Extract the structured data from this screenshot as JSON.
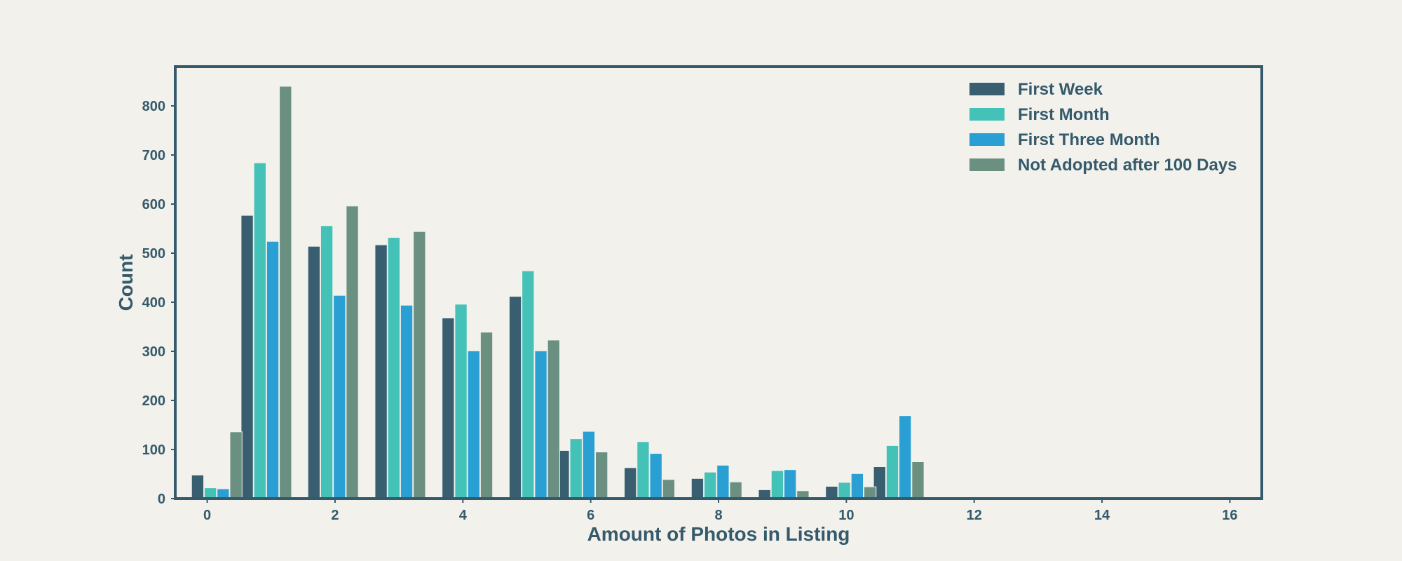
{
  "chart_data": {
    "type": "bar",
    "xlabel": "Amount of Photos in Listing",
    "ylabel": "Count",
    "xlim": [
      -0.5,
      16.5
    ],
    "ylim": [
      0,
      880
    ],
    "xticks": [
      0,
      2,
      4,
      6,
      8,
      10,
      12,
      14,
      16
    ],
    "yticks": [
      0,
      100,
      200,
      300,
      400,
      500,
      600,
      700,
      800
    ],
    "legend_position": "top-right",
    "grid": false,
    "bar_width": 0.19,
    "series": [
      {
        "name": "First Week",
        "color": "#395e70",
        "bars": [
          [
            -0.15,
            48
          ],
          [
            0.625,
            577
          ],
          [
            1.67,
            514
          ],
          [
            2.72,
            517
          ],
          [
            3.77,
            368
          ],
          [
            4.82,
            412
          ],
          [
            5.57,
            98
          ],
          [
            6.62,
            63
          ],
          [
            7.67,
            41
          ],
          [
            8.72,
            18
          ],
          [
            9.77,
            25
          ],
          [
            10.52,
            65
          ]
        ]
      },
      {
        "name": "First Month",
        "color": "#45c2b8",
        "bars": [
          [
            0.05,
            22
          ],
          [
            0.825,
            684
          ],
          [
            1.87,
            556
          ],
          [
            2.92,
            532
          ],
          [
            3.97,
            396
          ],
          [
            5.02,
            464
          ],
          [
            5.77,
            122
          ],
          [
            6.82,
            116
          ],
          [
            7.87,
            54
          ],
          [
            8.92,
            57
          ],
          [
            9.97,
            33
          ],
          [
            10.72,
            108
          ]
        ]
      },
      {
        "name": "First Three Month",
        "color": "#2a9fd4",
        "bars": [
          [
            0.25,
            20
          ],
          [
            1.025,
            524
          ],
          [
            2.07,
            414
          ],
          [
            3.12,
            394
          ],
          [
            4.17,
            301
          ],
          [
            5.22,
            301
          ],
          [
            5.97,
            137
          ],
          [
            7.02,
            92
          ],
          [
            8.07,
            68
          ],
          [
            9.12,
            59
          ],
          [
            10.17,
            51
          ],
          [
            10.92,
            169
          ]
        ]
      },
      {
        "name": "Not Adopted after 100 Days",
        "color": "#6b9082",
        "bars": [
          [
            0.45,
            136
          ],
          [
            1.225,
            840
          ],
          [
            2.27,
            596
          ],
          [
            3.32,
            544
          ],
          [
            4.37,
            339
          ],
          [
            5.42,
            323
          ],
          [
            6.17,
            95
          ],
          [
            7.22,
            39
          ],
          [
            8.27,
            34
          ],
          [
            9.32,
            16
          ],
          [
            10.37,
            24
          ],
          [
            11.12,
            75
          ]
        ]
      }
    ]
  }
}
